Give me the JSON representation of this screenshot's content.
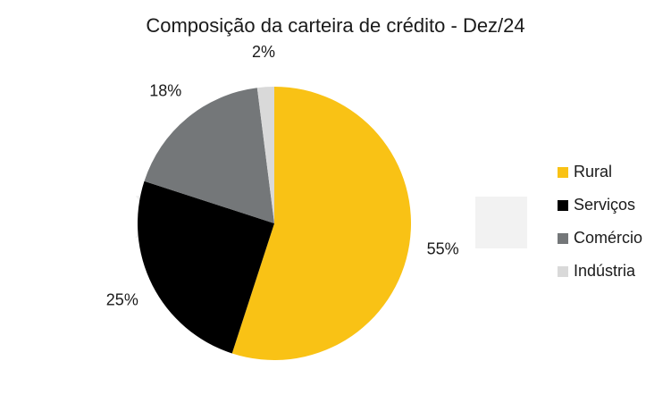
{
  "chart_data": {
    "type": "pie",
    "title": "Composição da carteira de crédito - Dez/24",
    "categories": [
      "Rural",
      "Serviços",
      "Comércio",
      "Indústria"
    ],
    "values": [
      55,
      25,
      18,
      2
    ],
    "data_labels": [
      "55%",
      "25%",
      "18%",
      "2%"
    ],
    "colors": [
      "#F9C215",
      "#000000",
      "#747779",
      "#D9D9D9"
    ],
    "start_angle": "12 o'clock",
    "direction": "clockwise",
    "legend_position": "right"
  }
}
